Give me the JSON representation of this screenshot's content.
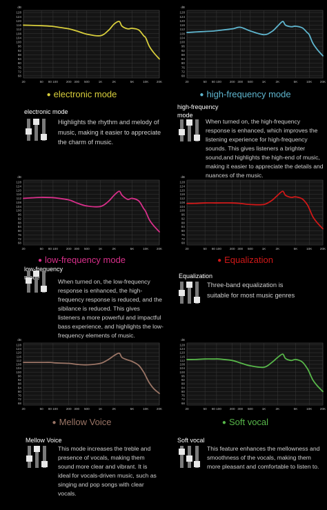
{
  "chart_data": [
    {
      "type": "line",
      "title": "electronic mode",
      "color": "#d9cf3c",
      "x": [
        20,
        30,
        50,
        80,
        100,
        200,
        300,
        500,
        1000,
        1500,
        2000,
        2600,
        3000,
        4000,
        5000,
        7000,
        9000,
        10000,
        12000,
        15000,
        20000
      ],
      "series": [
        {
          "values": [
            116,
            115.8,
            115.5,
            115,
            114.5,
            112.5,
            110.5,
            107.5,
            106,
            111,
            117,
            119.5,
            115,
            112.5,
            113,
            111.5,
            106,
            104,
            96,
            90,
            84
          ]
        }
      ],
      "xticks": [
        "20",
        "50",
        "80 100",
        "200",
        "300",
        "500",
        "1K",
        "2K",
        "5K",
        "10K",
        "20K"
      ],
      "yticks": [
        "dB",
        "128",
        "124",
        "120",
        "116",
        "112",
        "108",
        "104",
        "100",
        "96",
        "92",
        "88",
        "84",
        "80",
        "76",
        "72",
        "68"
      ],
      "ylim": [
        66,
        130
      ]
    },
    {
      "type": "line",
      "title": "high-frequency mode",
      "color": "#5fb6cf",
      "x": [
        20,
        30,
        50,
        80,
        100,
        200,
        300,
        500,
        1000,
        1500,
        2000,
        2600,
        3000,
        4000,
        5000,
        7000,
        9000,
        10000,
        12000,
        15000,
        20000
      ],
      "series": [
        {
          "values": [
            109,
            109.5,
            110,
            110.5,
            111,
            112.5,
            114,
            110.5,
            107,
            110,
            115,
            119.5,
            116,
            114.5,
            115,
            113.5,
            109,
            107,
            99,
            93,
            87
          ]
        }
      ],
      "xticks": [
        "20",
        "50",
        "80 100",
        "200",
        "300",
        "500",
        "1K",
        "2K",
        "5K",
        "10K",
        "20K"
      ],
      "yticks": [
        "dB",
        "128",
        "124",
        "120",
        "116",
        "112",
        "108",
        "104",
        "100",
        "96",
        "92",
        "88",
        "84",
        "80",
        "76",
        "72",
        "68"
      ],
      "ylim": [
        66,
        130
      ]
    },
    {
      "type": "line",
      "title": "low-frequency mode",
      "color": "#d82f8a",
      "x": [
        20,
        30,
        50,
        80,
        100,
        200,
        300,
        500,
        1000,
        1500,
        2000,
        2600,
        3000,
        4000,
        5000,
        7000,
        9000,
        10000,
        12000,
        15000,
        20000
      ],
      "series": [
        {
          "values": [
            112,
            112.5,
            113,
            112.8,
            112.5,
            110.5,
            107.5,
            104.5,
            104,
            109,
            115,
            119,
            115,
            111,
            112,
            109.5,
            102,
            99,
            91,
            85,
            79
          ]
        }
      ],
      "xticks": [
        "20",
        "50",
        "80 100",
        "200",
        "300",
        "500",
        "1K",
        "2K",
        "5K",
        "10K",
        "20K"
      ],
      "yticks": [
        "dB",
        "128",
        "124",
        "120",
        "116",
        "112",
        "108",
        "104",
        "100",
        "96",
        "92",
        "88",
        "84",
        "80",
        "76",
        "72",
        "68"
      ],
      "ylim": [
        66,
        130
      ]
    },
    {
      "type": "line",
      "title": "Equalization",
      "color": "#d01818",
      "x": [
        20,
        30,
        50,
        80,
        100,
        200,
        300,
        500,
        1000,
        1500,
        2000,
        2600,
        3000,
        4000,
        5000,
        7000,
        9000,
        10000,
        12000,
        15000,
        20000
      ],
      "series": [
        {
          "values": [
            107,
            107,
            107.5,
            107.5,
            107.5,
            107.5,
            107,
            106,
            106,
            110,
            115,
            119,
            115,
            113,
            113.5,
            111.5,
            106,
            102,
            94,
            88,
            82
          ]
        }
      ],
      "xticks": [
        "20",
        "50",
        "80 100",
        "200",
        "300",
        "500",
        "1K",
        "2K",
        "5K",
        "10K",
        "20K"
      ],
      "yticks": [
        "dB",
        "128",
        "124",
        "120",
        "116",
        "112",
        "108",
        "104",
        "100",
        "96",
        "92",
        "88",
        "84",
        "80",
        "76",
        "72",
        "68"
      ],
      "ylim": [
        66,
        130
      ]
    },
    {
      "type": "line",
      "title": "Mellow Voice",
      "color": "#9b7566",
      "x": [
        20,
        30,
        50,
        80,
        100,
        200,
        300,
        500,
        1000,
        1500,
        2000,
        2600,
        3000,
        4000,
        5000,
        7000,
        9000,
        10000,
        12000,
        15000,
        20000
      ],
      "series": [
        {
          "values": [
            110,
            110,
            110,
            110,
            109.5,
            109,
            108,
            107.5,
            109,
            113,
            117,
            119.5,
            115,
            112.5,
            111,
            107,
            100,
            96,
            89,
            83,
            78
          ]
        }
      ],
      "xticks": [
        "20",
        "50",
        "80 100",
        "200",
        "300",
        "500",
        "1K",
        "2K",
        "5K",
        "10K",
        "20K"
      ],
      "yticks": [
        "dB",
        "128",
        "124",
        "120",
        "116",
        "112",
        "108",
        "104",
        "100",
        "96",
        "92",
        "88",
        "84",
        "80",
        "76",
        "72",
        "68"
      ],
      "ylim": [
        66,
        130
      ]
    },
    {
      "type": "line",
      "title": "Soft vocal",
      "color": "#58b84a",
      "x": [
        20,
        30,
        50,
        80,
        100,
        200,
        300,
        500,
        1000,
        1500,
        2000,
        2600,
        3000,
        4000,
        5000,
        7000,
        9000,
        10000,
        12000,
        15000,
        20000
      ],
      "series": [
        {
          "values": [
            113,
            113,
            113.5,
            113.5,
            113.5,
            112,
            109.5,
            106.5,
            105,
            110,
            115,
            118.5,
            114,
            112,
            113,
            110.5,
            104,
            100,
            92,
            86,
            80
          ]
        }
      ],
      "xticks": [
        "20",
        "50",
        "80 100",
        "200",
        "300",
        "500",
        "1K",
        "2K",
        "5K",
        "10K",
        "20K"
      ],
      "yticks": [
        "dB",
        "128",
        "124",
        "120",
        "116",
        "112",
        "108",
        "104",
        "100",
        "96",
        "92",
        "88",
        "84",
        "80",
        "76",
        "72",
        "68"
      ],
      "ylim": [
        66,
        130
      ]
    }
  ],
  "modes": [
    {
      "title": "electronic mode",
      "heading": "electronic mode",
      "description": "Highlights the rhythm and melody of music, making it easier to appreciate the charm of music.",
      "icon": "equalizer-icon",
      "color": "#d9cf3c"
    },
    {
      "title": "high-frequency mode",
      "heading": "high-frequency mode",
      "description": "When turned on, the high-frequency response is enhanced, which improves the listening experience for high-frequency sounds. This gives listeners a brighter sound,and highlights the high-end of music, making it easier to appreciate the details and nuances of the music.",
      "icon": "equalizer-icon",
      "color": "#5fb6cf"
    },
    {
      "title": "low-frequency mode",
      "heading": "low-frequency mode",
      "description": "When turned on, the low-frequency response is enhanced, the high-frequency response is reduced, and the sibilance is reduced. This gives listeners a more powerful and impactful bass experience, and highlights the low-frequency elements of music.",
      "icon": "equalizer-icon",
      "color": "#d82f8a"
    },
    {
      "title": "Equalization",
      "heading": "Equalization",
      "description": "Three-band equalization is suitable for most music genres",
      "icon": "equalizer-icon",
      "color": "#d01818"
    },
    {
      "title": "Mellow Voice",
      "heading": "Mellow Voice",
      "description": "This mode increases the treble and presence of vocals, making them sound more clear and vibrant. It is ideal for vocals-driven music, such as singing and pop songs with clear vocals.",
      "icon": "equalizer-icon",
      "color": "#9b7566"
    },
    {
      "title": "Soft vocal",
      "heading": "Soft vocal",
      "description": "This feature enhances the mellowness and smoothness of the vocals, making them more pleasant and comfortable to listen to.",
      "icon": "equalizer-icon",
      "color": "#58b84a"
    }
  ]
}
